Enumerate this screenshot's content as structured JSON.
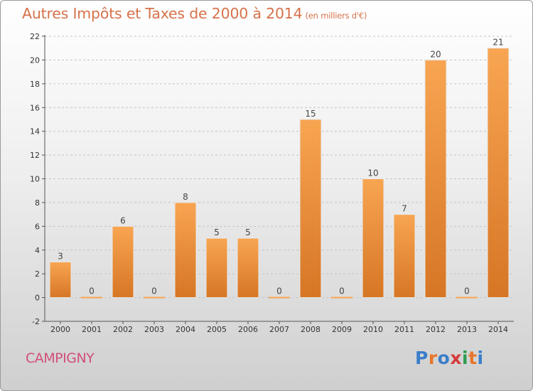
{
  "header": {
    "title": "Autres Impôts et Taxes de 2000 à 2014",
    "unit": "(en milliers d'€)"
  },
  "footer": {
    "commune": "CAMPIGNY",
    "brand": "Proxiti",
    "brand_colors": [
      "#3a7ec9",
      "#e8762a",
      "#3a7ec9",
      "#d63b3b",
      "#2e9b4e",
      "#e8762a",
      "#3a7ec9"
    ]
  },
  "colors": {
    "bar_top": "#f8a552",
    "bar_bottom": "#d67625",
    "title": "#d6724a",
    "commune": "#d24f78"
  },
  "chart_data": {
    "type": "bar",
    "title": "Autres Impôts et Taxes de 2000 à 2014",
    "subtitle": "(en milliers d'€)",
    "xlabel": "",
    "ylabel": "",
    "categories": [
      "2000",
      "2001",
      "2002",
      "2003",
      "2004",
      "2005",
      "2006",
      "2007",
      "2008",
      "2009",
      "2010",
      "2011",
      "2012",
      "2013",
      "2014"
    ],
    "values": [
      3,
      0,
      6,
      0,
      8,
      5,
      5,
      0,
      15,
      0,
      10,
      7,
      20,
      0,
      21
    ],
    "value_labels": [
      "3",
      "0",
      "6",
      "0",
      "8",
      "5",
      "5",
      "0",
      "15",
      "0",
      "10",
      "7",
      "20",
      "0",
      "21"
    ],
    "ylim": [
      -2,
      22
    ],
    "yticks": [
      -2,
      0,
      2,
      4,
      6,
      8,
      10,
      12,
      14,
      16,
      18,
      20,
      22
    ],
    "grid": true
  }
}
